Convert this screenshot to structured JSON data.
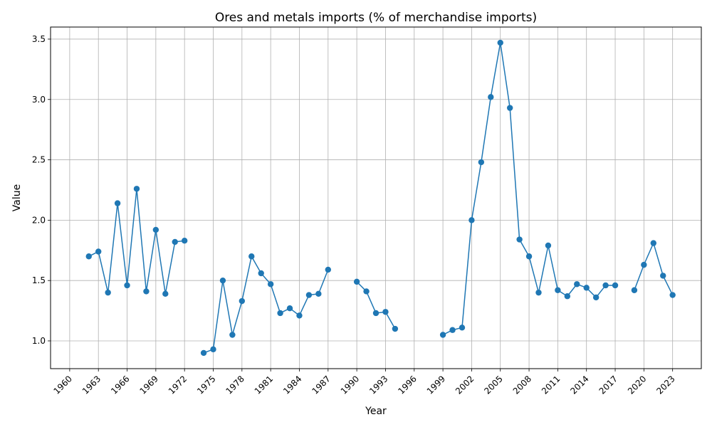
{
  "chart_data": {
    "type": "line",
    "title": "Ores and metals imports (% of merchandise imports)",
    "xlabel": "Year",
    "ylabel": "Value",
    "xlim": [
      1958,
      2026
    ],
    "ylim": [
      0.77,
      3.6
    ],
    "x_ticks": [
      1960,
      1963,
      1966,
      1969,
      1972,
      1975,
      1978,
      1981,
      1984,
      1987,
      1990,
      1993,
      1996,
      1999,
      2002,
      2005,
      2008,
      2011,
      2014,
      2017,
      2020,
      2023
    ],
    "y_ticks": [
      1.0,
      1.5,
      2.0,
      2.5,
      3.0,
      3.5
    ],
    "grid": true,
    "legend": "none",
    "colors": {
      "line": "#1f77b4"
    },
    "series": [
      {
        "x": [
          1962,
          1963,
          1964,
          1965,
          1966,
          1967,
          1968,
          1969,
          1970,
          1971,
          1972,
          1973,
          1974,
          1975,
          1976,
          1977,
          1978,
          1979,
          1980,
          1981,
          1982,
          1983,
          1984,
          1985,
          1986,
          1987,
          1988,
          1989,
          1990,
          1991,
          1992,
          1993,
          1994,
          1995,
          1996,
          1997,
          1998,
          1999,
          2000,
          2001,
          2002,
          2003,
          2004,
          2005,
          2006,
          2007,
          2008,
          2009,
          2010,
          2011,
          2012,
          2013,
          2014,
          2015,
          2016,
          2017,
          2018,
          2019,
          2020,
          2021,
          2022,
          2023
        ],
        "values": [
          1.7,
          1.74,
          1.4,
          2.14,
          1.46,
          2.26,
          1.41,
          1.92,
          1.39,
          1.82,
          1.83,
          null,
          0.9,
          0.93,
          1.5,
          1.05,
          1.33,
          1.7,
          1.56,
          1.47,
          1.23,
          1.27,
          1.21,
          1.38,
          1.39,
          1.59,
          null,
          null,
          1.49,
          1.41,
          1.23,
          1.24,
          1.1,
          null,
          null,
          null,
          null,
          1.05,
          1.09,
          1.11,
          2.0,
          2.48,
          3.02,
          3.47,
          2.93,
          1.84,
          1.7,
          1.4,
          1.79,
          1.42,
          1.37,
          1.47,
          1.44,
          1.36,
          1.46,
          1.46,
          null,
          1.42,
          1.63,
          1.81,
          1.54,
          1.38
        ]
      }
    ]
  }
}
